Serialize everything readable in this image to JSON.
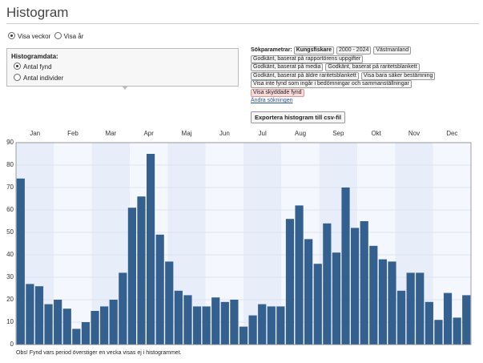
{
  "header": {
    "title": "Histogram"
  },
  "view": {
    "options": [
      "Visa veckor",
      "Visa år"
    ]
  },
  "data_box": {
    "title": "Histogramdata:",
    "options": [
      "Antal fynd",
      "Antal individer"
    ]
  },
  "search": {
    "label": "Sökparametrar:",
    "tags": [
      "Kungsfiskare",
      "2000 - 2024",
      "Västmanland",
      "Godkänt, baserat på rapportörens uppgifter",
      "Godkänt, baserat på media",
      "Godkänt, baserat på raritetsblankett",
      "Godkänt, baserat på äldre raritetsblankett",
      "Visa bara säker bestämning",
      "Visa inte fynd som ingår i bedömningar och sammanställningar",
      "Visa skyddade fynd"
    ],
    "link": "Ändra sökningen",
    "button": "Exportera histogram till csv-fil"
  },
  "chart_data": {
    "type": "bar",
    "months": [
      "Jan",
      "Feb",
      "Mar",
      "Apr",
      "Maj",
      "Jun",
      "Jul",
      "Aug",
      "Sep",
      "Okt",
      "Nov",
      "Dec"
    ],
    "values": [
      74,
      27,
      26,
      18,
      20,
      16,
      7,
      10,
      15,
      17,
      20,
      32,
      61,
      66,
      85,
      49,
      37,
      24,
      22,
      17,
      17,
      21,
      19,
      20,
      8,
      13,
      18,
      17,
      17,
      56,
      62,
      47,
      36,
      54,
      41,
      70,
      52,
      55,
      44,
      38,
      37,
      24,
      32,
      32,
      19,
      11,
      23,
      12,
      22
    ],
    "color": "#34608f",
    "ylim": [
      0,
      90
    ],
    "yticks": [
      0,
      10,
      20,
      30,
      40,
      50,
      60,
      70,
      80,
      90
    ],
    "grid": true
  },
  "footer": {
    "note": "Obs! Fynd vars period överstiger en vecka visas ej i histogrammet."
  }
}
